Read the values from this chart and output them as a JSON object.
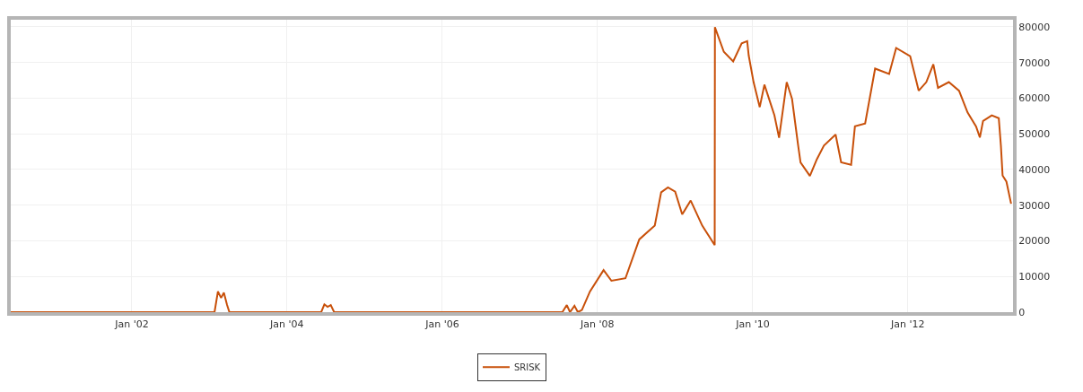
{
  "chart_data": {
    "type": "line",
    "x": [
      "2000-06-10",
      "2003-01-25",
      "2003-02-10",
      "2003-02-25",
      "2003-03-10",
      "2003-03-25",
      "2003-04-05",
      "2004-06-10",
      "2004-06-25",
      "2004-07-10",
      "2004-07-25",
      "2004-08-10",
      "2007-07-20",
      "2007-08-10",
      "2007-08-25",
      "2007-09-15",
      "2007-10-01",
      "2007-10-20",
      "2007-11-27",
      "2008-01-30",
      "2008-03-07",
      "2008-05-12",
      "2008-07-16",
      "2008-09-27",
      "2008-10-27",
      "2008-11-28",
      "2009-01-01",
      "2009-02-03",
      "2009-03-15",
      "2009-05-08",
      "2009-07-06",
      "2009-07-07",
      "2009-08-18",
      "2009-10-01",
      "2009-11-10",
      "2009-12-06",
      "2009-12-13",
      "2010-01-05",
      "2010-02-03",
      "2010-02-25",
      "2010-04-13",
      "2010-05-05",
      "2010-06-10",
      "2010-07-05",
      "2010-08-03",
      "2010-08-14",
      "2010-09-27",
      "2010-10-30",
      "2010-12-02",
      "2011-01-26",
      "2011-02-21",
      "2011-04-09",
      "2011-04-27",
      "2011-06-14",
      "2011-07-31",
      "2011-10-05",
      "2011-11-07",
      "2012-01-12",
      "2012-02-21",
      "2012-03-28",
      "2012-04-30",
      "2012-05-22",
      "2012-07-12",
      "2012-08-29",
      "2012-10-08",
      "2012-11-17",
      "2012-12-05",
      "2012-12-20",
      "2013-01-30",
      "2013-03-04",
      "2013-03-14",
      "2013-03-22",
      "2013-04-09",
      "2013-05-01"
    ],
    "series": [
      {
        "name": "SRISK",
        "color": "#c8500a",
        "values": [
          0,
          0,
          5800,
          4000,
          5500,
          2000,
          0,
          0,
          2200,
          1500,
          2000,
          0,
          0,
          2000,
          0,
          1800,
          0,
          600,
          5800,
          11800,
          8800,
          9500,
          20400,
          24300,
          33600,
          35000,
          33800,
          27400,
          31300,
          24300,
          18800,
          79900,
          73000,
          70300,
          75400,
          76000,
          72000,
          64500,
          57500,
          63800,
          55200,
          48900,
          64500,
          59800,
          46600,
          42000,
          38200,
          42900,
          46700,
          49800,
          42000,
          41300,
          52100,
          52900,
          68300,
          66800,
          74100,
          71800,
          62100,
          64500,
          69500,
          62900,
          64500,
          62100,
          56000,
          52100,
          49000,
          53600,
          55200,
          54400,
          46700,
          38300,
          36600,
          30400
        ]
      }
    ],
    "xlim": [
      "2000-06-10",
      "2013-05-10"
    ],
    "xticks": [
      {
        "value": "2002-01-01",
        "label": "Jan '02"
      },
      {
        "value": "2004-01-01",
        "label": "Jan '04"
      },
      {
        "value": "2006-01-01",
        "label": "Jan '06"
      },
      {
        "value": "2008-01-01",
        "label": "Jan '08"
      },
      {
        "value": "2010-01-01",
        "label": "Jan '10"
      },
      {
        "value": "2012-01-01",
        "label": "Jan '12"
      }
    ],
    "ylim": [
      0,
      82000
    ],
    "yticks": [
      0,
      10000,
      20000,
      30000,
      40000,
      50000,
      60000,
      70000,
      80000
    ],
    "grid": true,
    "legend": "bottom",
    "marker": "none",
    "line_style": "solid"
  }
}
